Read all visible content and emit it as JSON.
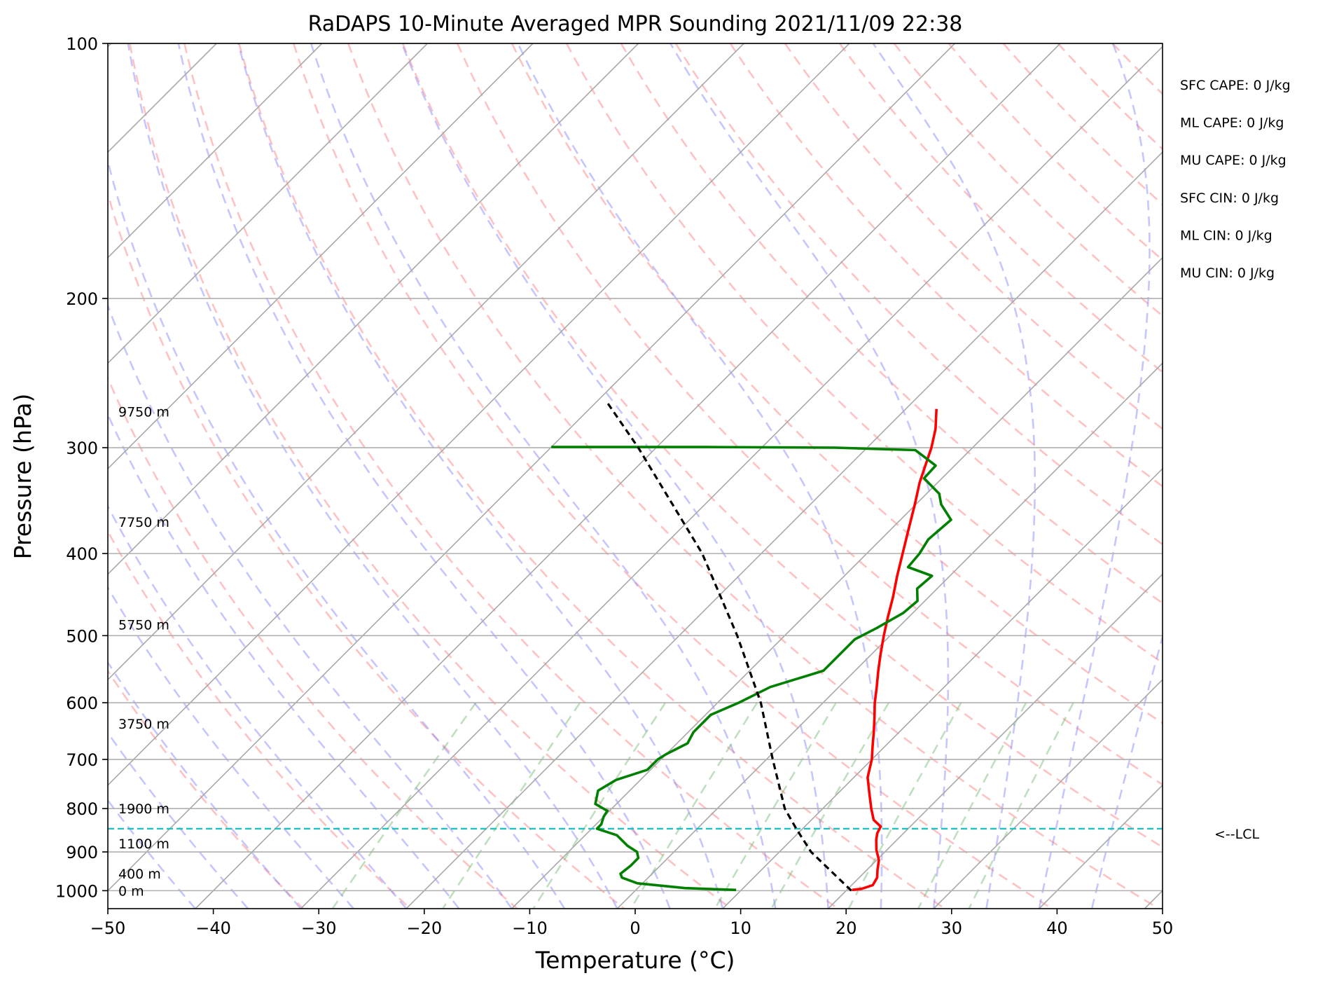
{
  "chart_data": {
    "type": "line",
    "title": "RaDAPS 10-Minute Averaged MPR Sounding 2021/11/09 22:38",
    "xlabel": "Temperature (°C)",
    "ylabel": "Pressure (hPa)",
    "xlim": [
      -50,
      50
    ],
    "ylim": [
      1050,
      100
    ],
    "y_scale": "log",
    "x_ticks": [
      -50,
      -40,
      -30,
      -20,
      -10,
      0,
      10,
      20,
      30,
      40,
      50
    ],
    "x_tick_labels": [
      "−50",
      "−40",
      "−30",
      "−20",
      "−10",
      "0",
      "10",
      "20",
      "30",
      "40",
      "50"
    ],
    "y_ticks": [
      100,
      200,
      300,
      400,
      500,
      600,
      700,
      800,
      900,
      1000
    ],
    "y_tick_labels": [
      "100",
      "200",
      "300",
      "400",
      "500",
      "600",
      "700",
      "800",
      "900",
      "1000"
    ],
    "grid": true,
    "background_lines": [
      "isotherms",
      "dry adiabats",
      "moist adiabats",
      "mixing ratio lines"
    ],
    "series": [
      {
        "role": "temperature",
        "color": "#ff0000",
        "points": [
          [
            998,
            20.5
          ],
          [
            995,
            21.3
          ],
          [
            985,
            22.0
          ],
          [
            965,
            21.7
          ],
          [
            945,
            21.0
          ],
          [
            920,
            20.2
          ],
          [
            895,
            19.0
          ],
          [
            870,
            18.0
          ],
          [
            855,
            17.5
          ],
          [
            840,
            17.2
          ],
          [
            825,
            15.9
          ],
          [
            800,
            14.6
          ],
          [
            770,
            13.1
          ],
          [
            735,
            11.3
          ],
          [
            700,
            10.0
          ],
          [
            675,
            8.8
          ],
          [
            650,
            7.6
          ],
          [
            625,
            6.3
          ],
          [
            600,
            4.9
          ],
          [
            575,
            3.6
          ],
          [
            550,
            2.2
          ],
          [
            525,
            0.8
          ],
          [
            500,
            -0.6
          ],
          [
            475,
            -2.0
          ],
          [
            450,
            -3.4
          ],
          [
            425,
            -5.0
          ],
          [
            400,
            -6.6
          ],
          [
            375,
            -8.3
          ],
          [
            350,
            -10.1
          ],
          [
            330,
            -11.7
          ],
          [
            312,
            -13.0
          ],
          [
            300,
            -13.9
          ],
          [
            285,
            -15.3
          ],
          [
            270,
            -17.1
          ]
        ]
      },
      {
        "role": "dewpoint",
        "color": "#008000",
        "points": [
          [
            998,
            9.5
          ],
          [
            993,
            4.5
          ],
          [
            980,
            -0.5
          ],
          [
            965,
            -2.5
          ],
          [
            955,
            -3.0
          ],
          [
            935,
            -2.8
          ],
          [
            915,
            -2.8
          ],
          [
            900,
            -3.5
          ],
          [
            885,
            -5.0
          ],
          [
            860,
            -7.0
          ],
          [
            845,
            -9.5
          ],
          [
            835,
            -9.5
          ],
          [
            818,
            -10.0
          ],
          [
            805,
            -10.2
          ],
          [
            790,
            -12.0
          ],
          [
            762,
            -13.0
          ],
          [
            740,
            -12.3
          ],
          [
            720,
            -10.3
          ],
          [
            700,
            -10.3
          ],
          [
            690,
            -10.0
          ],
          [
            670,
            -9.0
          ],
          [
            650,
            -9.5
          ],
          [
            620,
            -9.5
          ],
          [
            600,
            -8.0
          ],
          [
            575,
            -6.5
          ],
          [
            550,
            -3.0
          ],
          [
            525,
            -3.0
          ],
          [
            505,
            -3.0
          ],
          [
            490,
            -2.0
          ],
          [
            470,
            -0.9
          ],
          [
            455,
            -0.7
          ],
          [
            440,
            -1.9
          ],
          [
            425,
            -1.7
          ],
          [
            415,
            -4.8
          ],
          [
            400,
            -5.0
          ],
          [
            385,
            -5.5
          ],
          [
            365,
            -5.2
          ],
          [
            350,
            -7.6
          ],
          [
            340,
            -8.8
          ],
          [
            326,
            -11.7
          ],
          [
            315,
            -11.8
          ],
          [
            308,
            -13.6
          ],
          [
            302,
            -15.2
          ],
          [
            300,
            -23.0
          ],
          [
            299.5,
            -35.0
          ],
          [
            299.5,
            -50.0
          ]
        ]
      },
      {
        "role": "parcel",
        "color": "#000000",
        "style": "dashed",
        "points": [
          [
            1000,
            20.5
          ],
          [
            900,
            13.0
          ],
          [
            845,
            9.4
          ],
          [
            800,
            6.4
          ],
          [
            700,
            0.6
          ],
          [
            600,
            -5.9
          ],
          [
            500,
            -14.5
          ],
          [
            400,
            -25.6
          ],
          [
            300,
            -41.7
          ],
          [
            265,
            -49.0
          ]
        ]
      }
    ],
    "lcl": {
      "pressure": 845,
      "label": "<--LCL",
      "color": "#20c0c0"
    },
    "height_labels": [
      {
        "text": "0 m",
        "pressure": 1000
      },
      {
        "text": "400 m",
        "pressure": 955
      },
      {
        "text": "1100 m",
        "pressure": 880
      },
      {
        "text": "1900 m",
        "pressure": 800
      },
      {
        "text": "3750 m",
        "pressure": 635
      },
      {
        "text": "5750 m",
        "pressure": 485
      },
      {
        "text": "7750 m",
        "pressure": 367
      },
      {
        "text": "9750 m",
        "pressure": 272
      }
    ],
    "stats": [
      "SFC CAPE: 0 J/kg",
      "ML CAPE: 0 J/kg",
      "MU CAPE: 0 J/kg",
      "SFC CIN: 0 J/kg",
      "ML CIN: 0 J/kg",
      "MU CIN: 0 J/kg"
    ]
  }
}
